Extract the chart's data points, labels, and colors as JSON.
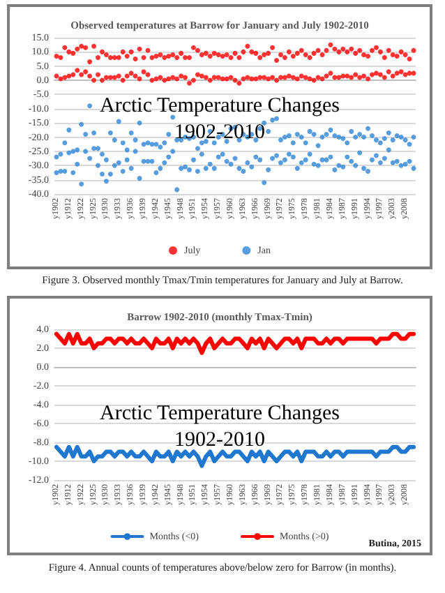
{
  "chart_data": [
    {
      "type": "scatter",
      "title": "Observed temperatures at Barrow for January and July 1902-2010",
      "categories": [
        "y1902",
        null,
        null,
        "y1912",
        null,
        null,
        "y1922",
        null,
        null,
        "y1925",
        null,
        null,
        "y1930",
        null,
        null,
        "y1933",
        null,
        null,
        "y1936",
        null,
        null,
        "y1939",
        null,
        null,
        "y1942",
        null,
        null,
        "y1945",
        null,
        null,
        "y1948",
        null,
        null,
        "y1951",
        null,
        null,
        "y1954",
        null,
        null,
        "y1957",
        null,
        null,
        "y1960",
        null,
        null,
        "y1963",
        null,
        null,
        "y1966",
        null,
        null,
        "y1969",
        null,
        null,
        "y1972",
        null,
        null,
        "y1975",
        null,
        null,
        "y1978",
        null,
        null,
        "y1981",
        null,
        null,
        "y1984",
        null,
        null,
        "y1987",
        null,
        null,
        "y1991",
        null,
        null,
        "y1994",
        null,
        null,
        "y1997",
        null,
        null,
        "y2003",
        null,
        null,
        "y2008",
        null,
        null
      ],
      "series": [
        {
          "name": "July",
          "color": "#ff0000",
          "values": [
            8.5,
            8.0,
            11.5,
            10.0,
            9.5,
            11.0,
            12.0,
            11.5,
            6.5,
            12.0,
            8.0,
            10.0,
            9.0,
            8.0,
            8.0,
            8.0,
            10.0,
            8.5,
            10.0,
            7.5,
            11.0,
            8.0,
            10.5,
            8.0,
            8.5,
            9.0,
            8.0,
            8.5,
            9.0,
            8.0,
            9.5,
            8.0,
            8.0,
            11.5,
            10.5,
            9.0,
            9.5,
            8.5,
            9.5,
            9.0,
            8.5,
            9.0,
            8.0,
            9.5,
            8.0,
            10.0,
            12.0,
            10.0,
            9.5,
            8.0,
            9.0,
            9.5,
            11.5,
            7.0,
            9.0,
            8.0,
            10.0,
            8.5,
            9.5,
            10.5,
            9.0,
            8.0,
            9.5,
            10.5,
            9.0,
            10.5,
            12.5,
            11.0,
            10.0,
            11.0,
            10.0,
            11.0,
            9.5,
            10.5,
            9.0,
            8.5,
            10.5,
            11.5,
            10.0,
            8.0,
            10.5,
            9.0,
            8.5,
            10.0,
            9.0,
            7.5,
            10.5
          ]
        },
        {
          "color": "#ff0000",
          "values": [
            1.5,
            0.5,
            1.0,
            1.5,
            2.0,
            3.5,
            2.0,
            3.0,
            1.5,
            0.0,
            2.0,
            0.0,
            1.0,
            1.0,
            1.0,
            1.5,
            0.0,
            1.5,
            2.5,
            1.5,
            0.5,
            3.0,
            2.0,
            0.0,
            0.5,
            1.0,
            0.0,
            0.5,
            1.0,
            0.5,
            1.5,
            1.0,
            -1.0,
            0.0,
            2.0,
            1.5,
            1.0,
            0.0,
            1.0,
            1.0,
            0.5,
            0.5,
            1.0,
            0.0,
            -1.0,
            0.5,
            1.0,
            0.5,
            0.5,
            1.0,
            1.0,
            0.5,
            1.0,
            0.0,
            1.0,
            1.0,
            1.5,
            1.0,
            0.5,
            1.5,
            1.0,
            0.5,
            0.0,
            1.0,
            0.5,
            1.5,
            2.5,
            1.0,
            1.0,
            1.5,
            1.5,
            1.0,
            2.0,
            1.0,
            1.5,
            0.5,
            2.0,
            2.5,
            2.0,
            1.0,
            3.0,
            1.5,
            2.5,
            3.0,
            2.0,
            2.5,
            2.5
          ]
        },
        {
          "name": "Jan",
          "color": "#2e86d6",
          "values": [
            -27.0,
            -26.0,
            -22.0,
            -17.5,
            -25.0,
            -24.5,
            -15.5,
            -19.0,
            -9.0,
            -18.5,
            -24.0,
            -26.0,
            -28.0,
            -18.5,
            -21.0,
            -14.5,
            -22.0,
            -24.5,
            -18.5,
            -21.0,
            -15.0,
            -22.5,
            -22.0,
            -22.5,
            -22.5,
            -23.5,
            -22.0,
            -19.0,
            -13.0,
            -21.0,
            -21.0,
            -20.0,
            -20.5,
            -20.0,
            -24.0,
            -22.0,
            -21.5,
            -18.0,
            -22.0,
            -20.0,
            -19.0,
            -21.5,
            -17.0,
            -16.5,
            -21.0,
            -19.0,
            -20.0,
            -19.0,
            -21.0,
            -17.0,
            -15.0,
            -18.0,
            -14.0,
            -13.5,
            -21.0,
            -20.0,
            -19.5,
            -22.0,
            -19.0,
            -20.0,
            -22.0,
            -18.0,
            -19.0,
            -23.0,
            -20.0,
            -19.0,
            -17.5,
            -19.5,
            -20.0,
            -20.5,
            -22.0,
            -18.0,
            -20.0,
            -19.0,
            -20.0,
            -17.0,
            -19.5,
            -21.0,
            -22.0,
            -20.5,
            -18.5,
            -21.0,
            -19.5,
            -20.0,
            -21.0,
            -22.5,
            -20.0
          ]
        },
        {
          "color": "#2e86d6",
          "values": [
            -32.5,
            -32.0,
            -32.0,
            -25.5,
            -32.5,
            -29.5,
            -36.5,
            -25.0,
            -27.5,
            -24.0,
            -30.0,
            -33.0,
            -35.5,
            -33.0,
            -30.0,
            -29.0,
            -32.0,
            -28.0,
            -31.0,
            -25.0,
            -34.5,
            -28.5,
            -28.5,
            -28.5,
            -32.5,
            -31.0,
            -29.0,
            -27.0,
            -25.0,
            -38.5,
            -31.0,
            -30.5,
            -31.5,
            -28.0,
            -32.0,
            -26.0,
            -31.0,
            -29.5,
            -31.0,
            -27.0,
            -26.0,
            -28.5,
            -29.5,
            -27.5,
            -31.0,
            -32.0,
            -29.0,
            -30.5,
            -27.0,
            -28.0,
            -36.0,
            -31.5,
            -27.5,
            -26.5,
            -29.0,
            -28.0,
            -26.0,
            -27.0,
            -31.0,
            -29.0,
            -28.0,
            -26.0,
            -29.5,
            -30.0,
            -28.0,
            -28.0,
            -27.0,
            -31.5,
            -30.0,
            -30.5,
            -27.0,
            -28.5,
            -30.0,
            -25.5,
            -31.0,
            -32.0,
            -28.0,
            -26.5,
            -29.0,
            -27.5,
            -24.5,
            -29.0,
            -28.5,
            -30.0,
            -29.5,
            -28.5,
            -31.0
          ]
        }
      ],
      "ylim": [
        -40,
        15
      ],
      "yticks": [
        {
          "value": -40,
          "label": "-40.0"
        },
        {
          "value": -35,
          "label": "-35.0"
        },
        {
          "value": -30,
          "label": "-30.0"
        },
        {
          "value": -25,
          "label": "-25.0"
        },
        {
          "value": -20,
          "label": "-20.0"
        },
        {
          "value": -15,
          "label": "-15.0"
        },
        {
          "value": -10,
          "label": "-10.0"
        },
        {
          "value": -5,
          "label": "-5.0"
        },
        {
          "value": 0,
          "label": "0.0"
        },
        {
          "value": 5,
          "label": "5.0"
        },
        {
          "value": 10,
          "label": "10.0"
        },
        {
          "value": 15,
          "label": "15.0"
        }
      ],
      "grid": "y",
      "legend": "bottom",
      "marker": "circle",
      "annotations": [
        "Arctic Temperature Changes\n1902-2010",
        "Figure 3. Observed monthly Tmax/Tmin temperatures for January and July at Barrow."
      ]
    },
    {
      "type": "line",
      "title": "Barrow 1902-2010 (monthly Tmax-Tmin)",
      "categories": [
        "y1902",
        null,
        null,
        "y1912",
        null,
        null,
        "y1922",
        null,
        null,
        "y1925",
        null,
        null,
        "y1930",
        null,
        null,
        "y1933",
        null,
        null,
        "y1936",
        null,
        null,
        "y1939",
        null,
        null,
        "y1942",
        null,
        null,
        "y1945",
        null,
        null,
        "y1948",
        null,
        null,
        "y1951",
        null,
        null,
        "y1954",
        null,
        null,
        "y1957",
        null,
        null,
        "y1960",
        null,
        null,
        "y1963",
        null,
        null,
        "y1966",
        null,
        null,
        "y1969",
        null,
        null,
        "y1972",
        null,
        null,
        "y1975",
        null,
        null,
        "y1978",
        null,
        null,
        "y1981",
        null,
        null,
        "y1984",
        null,
        null,
        "y1987",
        null,
        null,
        "y1991",
        null,
        null,
        "y1994",
        null,
        null,
        "y1997",
        null,
        null,
        "y2003",
        null,
        null,
        "y2008",
        null,
        null
      ],
      "series": [
        {
          "name": "Months (<0)",
          "color": "#1f77d0",
          "values": [
            -8.5,
            -9.0,
            -9.5,
            -8.5,
            -9.5,
            -8.5,
            -9.5,
            -9.5,
            -9.0,
            -10.0,
            -9.5,
            -9.5,
            -9.0,
            -9.0,
            -9.5,
            -9.0,
            -9.0,
            -9.5,
            -9.0,
            -9.5,
            -9.5,
            -9.0,
            -9.5,
            -10.0,
            -9.0,
            -9.5,
            -9.5,
            -9.0,
            -10.0,
            -9.0,
            -9.5,
            -9.0,
            -9.5,
            -9.0,
            -9.5,
            -10.5,
            -9.5,
            -9.0,
            -10.0,
            -9.5,
            -9.0,
            -9.5,
            -9.5,
            -9.0,
            -9.0,
            -9.5,
            -10.0,
            -9.0,
            -9.5,
            -9.0,
            -10.0,
            -9.0,
            -9.5,
            -10.0,
            -9.5,
            -9.0,
            -9.0,
            -9.5,
            -9.0,
            -10.0,
            -9.0,
            -9.0,
            -9.0,
            -9.5,
            -9.5,
            -9.0,
            -9.5,
            -9.0,
            -9.0,
            -9.5,
            -9.0,
            -9.0,
            -9.0,
            -9.0,
            -9.0,
            -9.0,
            -9.0,
            -9.5,
            -9.0,
            -9.0,
            -9.0,
            -8.5,
            -8.5,
            -9.0,
            -9.0,
            -8.5,
            -8.5
          ]
        },
        {
          "name": "Months (>0)",
          "color": "#ff0000",
          "values": [
            3.5,
            3.0,
            2.5,
            3.5,
            2.5,
            3.5,
            2.5,
            2.5,
            3.0,
            2.0,
            2.5,
            2.5,
            3.0,
            3.0,
            2.5,
            3.0,
            3.0,
            2.5,
            3.0,
            2.5,
            2.5,
            3.0,
            2.5,
            2.0,
            3.0,
            2.5,
            2.5,
            3.0,
            2.0,
            3.0,
            2.5,
            3.0,
            2.5,
            3.0,
            2.5,
            1.5,
            2.5,
            3.0,
            2.0,
            2.5,
            3.0,
            2.5,
            2.5,
            3.0,
            3.0,
            2.5,
            2.0,
            3.0,
            2.5,
            3.0,
            2.0,
            3.0,
            2.5,
            2.0,
            2.5,
            3.0,
            3.0,
            2.5,
            3.0,
            2.0,
            3.0,
            3.0,
            3.0,
            2.5,
            2.5,
            3.0,
            2.5,
            3.0,
            3.0,
            2.5,
            3.0,
            3.0,
            3.0,
            3.0,
            3.0,
            3.0,
            3.0,
            2.5,
            3.0,
            3.0,
            3.0,
            3.5,
            3.5,
            3.0,
            3.0,
            3.5,
            3.5
          ]
        }
      ],
      "ylim": [
        -12,
        4
      ],
      "yticks": [
        {
          "value": -12,
          "label": "-12.0"
        },
        {
          "value": -10,
          "label": "-10.0"
        },
        {
          "value": -8,
          "label": "-8.0"
        },
        {
          "value": -6,
          "label": "-6.0"
        },
        {
          "value": -4,
          "label": "-4.0"
        },
        {
          "value": -2,
          "label": "-2.0"
        },
        {
          "value": 0,
          "label": "0.0"
        },
        {
          "value": 2,
          "label": "2.0"
        },
        {
          "value": 4,
          "label": "4.0"
        }
      ],
      "grid": "y",
      "legend": "bottom",
      "marker": "none",
      "line_style": "solid",
      "annotations": [
        "Arctic Temperature Changes\n1902-2010",
        "Butina, 2015",
        "Figure 4. Annual counts of temperatures above/below zero for Barrow (in months)."
      ]
    }
  ]
}
